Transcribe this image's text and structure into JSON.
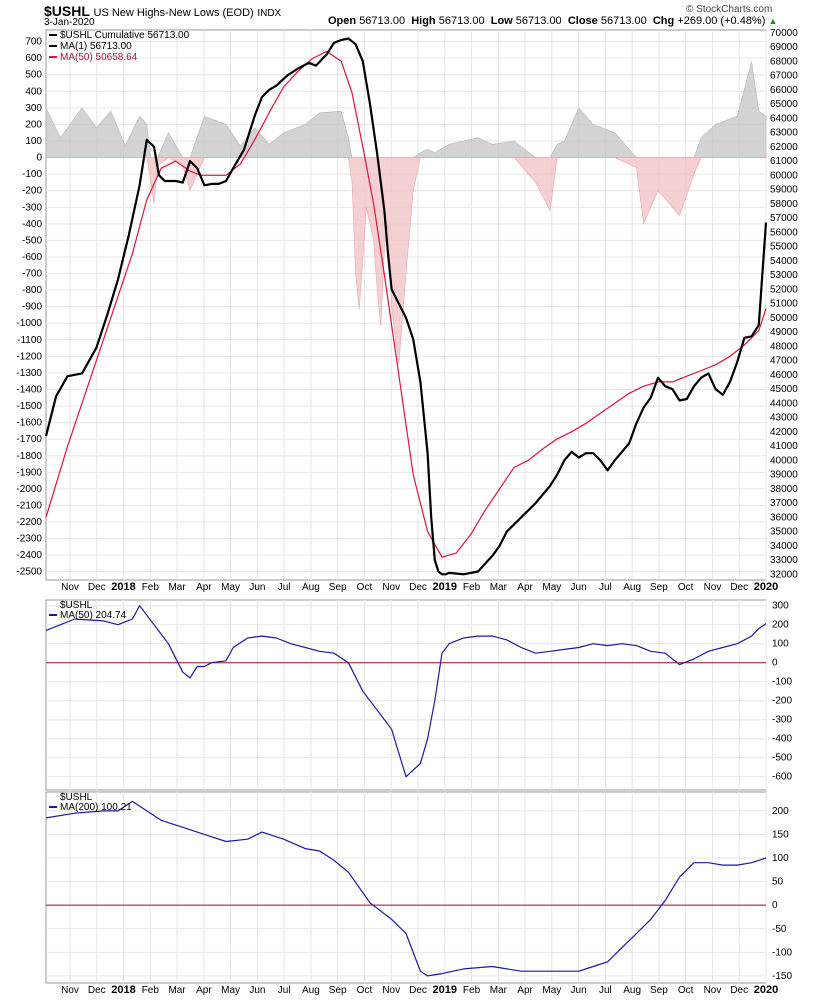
{
  "header": {
    "symbol": "$USHL",
    "name": "US New Highs-New Lows (EOD)",
    "exchange": "INDX",
    "date": "3-Jan-2020",
    "open_label": "Open",
    "open": "56713.00",
    "high_label": "High",
    "high": "56713.00",
    "low_label": "Low",
    "low": "56713.00",
    "close_label": "Close",
    "close": "56713.00",
    "chg_label": "Chg",
    "chg": "+269.00 (+0.48%)",
    "credit": "© StockCharts.com"
  },
  "colors": {
    "cumulative": "#000000",
    "ma50": "#e0143c",
    "histogram_pos": "#c8c8c8",
    "histogram_neg": "#f2c4c8",
    "lower": "#1a1aa0",
    "zero_line": "#9b1030",
    "grid": "#e6e6e6"
  },
  "chart_data": [
    {
      "type": "line",
      "legend": [
        {
          "label": "$USHL Cumulative 56713.00"
        },
        {
          "label": "MA(1) 56713.00"
        },
        {
          "label": "MA(50) 50658.64"
        }
      ],
      "x_labels": [
        "Nov",
        "Dec",
        "2018",
        "Feb",
        "Mar",
        "Apr",
        "May",
        "Jun",
        "Jul",
        "Aug",
        "Sep",
        "Oct",
        "Nov",
        "Dec",
        "2019",
        "Feb",
        "Mar",
        "Apr",
        "May",
        "Jun",
        "Jul",
        "Aug",
        "Sep",
        "Oct",
        "Nov",
        "Dec",
        "2020"
      ],
      "left_ticks": [
        700,
        600,
        500,
        400,
        300,
        200,
        100,
        0,
        -100,
        -200,
        -300,
        -400,
        -500,
        -600,
        -700,
        -800,
        -900,
        -1000,
        -1100,
        -1200,
        -1300,
        -1400,
        -1500,
        -1600,
        -1700,
        -1800,
        -1900,
        -2000,
        -2100,
        -2200,
        -2300,
        -2400,
        -2500
      ],
      "right_ticks": [
        70000,
        69000,
        68000,
        67000,
        66000,
        65000,
        64000,
        63000,
        62000,
        61000,
        60000,
        59000,
        58000,
        57000,
        56000,
        55000,
        54000,
        53000,
        52000,
        51000,
        50000,
        49000,
        48000,
        47000,
        46000,
        45000,
        44000,
        43000,
        42000,
        41000,
        40000,
        39000,
        38000,
        37000,
        36000,
        35000,
        34000,
        33000,
        32000
      ],
      "left_range": [
        -2550,
        770
      ],
      "right_range": [
        31600,
        70200
      ],
      "cumulative": {
        "x": [
          0,
          0.014,
          0.03,
          0.05,
          0.07,
          0.085,
          0.1,
          0.115,
          0.13,
          0.14,
          0.15,
          0.157,
          0.165,
          0.18,
          0.19,
          0.2,
          0.21,
          0.22,
          0.23,
          0.24,
          0.25,
          0.26,
          0.275,
          0.29,
          0.3,
          0.31,
          0.32,
          0.335,
          0.35,
          0.365,
          0.375,
          0.39,
          0.4,
          0.41,
          0.42,
          0.43,
          0.44,
          0.45,
          0.46,
          0.47,
          0.475,
          0.48,
          0.49,
          0.5,
          0.51,
          0.52,
          0.53,
          0.535,
          0.54,
          0.545,
          0.55,
          0.555,
          0.56,
          0.58,
          0.6,
          0.62,
          0.63,
          0.64,
          0.66,
          0.68,
          0.7,
          0.71,
          0.72,
          0.73,
          0.74,
          0.75,
          0.76,
          0.77,
          0.78,
          0.79,
          0.8,
          0.81,
          0.82,
          0.83,
          0.84,
          0.85,
          0.86,
          0.87,
          0.88,
          0.89,
          0.9,
          0.91,
          0.92,
          0.93,
          0.94,
          0.95,
          0.96,
          0.97,
          0.98,
          0.99,
          1.0
        ],
        "y": [
          41700,
          44500,
          45900,
          46100,
          47900,
          50200,
          52700,
          55800,
          59300,
          62500,
          62000,
          60000,
          59600,
          59600,
          59500,
          61000,
          60500,
          59300,
          59400,
          59400,
          59600,
          60500,
          61800,
          64200,
          65500,
          66000,
          66300,
          67000,
          67500,
          67900,
          67700,
          68500,
          69300,
          69500,
          69600,
          69200,
          68000,
          65000,
          61500,
          57500,
          54500,
          52000,
          51000,
          50000,
          48500,
          45500,
          40500,
          36000,
          33000,
          32200,
          32000,
          32000,
          32100,
          32000,
          32200,
          33300,
          34000,
          35000,
          36000,
          37000,
          38200,
          39000,
          40000,
          40600,
          40200,
          40500,
          40500,
          40000,
          39300,
          40000,
          40600,
          41200,
          42600,
          43700,
          44400,
          45800,
          45200,
          45000,
          44200,
          44300,
          45200,
          45800,
          46100,
          45000,
          44600,
          45500,
          46900,
          48600,
          48700,
          49500,
          56700
        ]
      },
      "ma50": {
        "x": [
          0,
          0.03,
          0.06,
          0.09,
          0.12,
          0.14,
          0.16,
          0.18,
          0.2,
          0.215,
          0.23,
          0.25,
          0.27,
          0.29,
          0.31,
          0.33,
          0.35,
          0.37,
          0.39,
          0.41,
          0.425,
          0.44,
          0.455,
          0.47,
          0.49,
          0.51,
          0.53,
          0.55,
          0.57,
          0.59,
          0.61,
          0.63,
          0.65,
          0.67,
          0.69,
          0.71,
          0.73,
          0.75,
          0.77,
          0.79,
          0.81,
          0.83,
          0.85,
          0.87,
          0.89,
          0.91,
          0.93,
          0.95,
          0.97,
          0.99,
          1.0
        ],
        "y": [
          36000,
          41000,
          45500,
          50000,
          54500,
          58300,
          60500,
          61000,
          60300,
          60000,
          60000,
          60000,
          60800,
          62500,
          64400,
          66200,
          67300,
          68200,
          68700,
          68000,
          65800,
          62000,
          58000,
          53000,
          46000,
          39000,
          35000,
          33200,
          33500,
          34800,
          36500,
          38000,
          39500,
          40000,
          40800,
          41500,
          42000,
          42600,
          43300,
          44000,
          44700,
          45200,
          45500,
          45500,
          45900,
          46300,
          46700,
          47300,
          48100,
          49100,
          50650
        ]
      },
      "histogram": {
        "x": [
          0,
          0.02,
          0.05,
          0.07,
          0.09,
          0.11,
          0.13,
          0.14,
          0.145,
          0.15,
          0.155,
          0.17,
          0.19,
          0.2,
          0.22,
          0.25,
          0.27,
          0.29,
          0.31,
          0.33,
          0.36,
          0.38,
          0.41,
          0.42,
          0.425,
          0.43,
          0.435,
          0.445,
          0.455,
          0.46,
          0.465,
          0.47,
          0.475,
          0.48,
          0.49,
          0.5,
          0.51,
          0.52,
          0.53,
          0.54,
          0.56,
          0.6,
          0.62,
          0.65,
          0.68,
          0.7,
          0.71,
          0.72,
          0.74,
          0.76,
          0.79,
          0.82,
          0.83,
          0.85,
          0.88,
          0.9,
          0.91,
          0.93,
          0.96,
          0.98,
          0.99,
          1.0
        ],
        "y": [
          300,
          120,
          300,
          180,
          280,
          70,
          250,
          200,
          -130,
          -280,
          -50,
          150,
          -50,
          -200,
          250,
          200,
          70,
          180,
          80,
          150,
          200,
          270,
          280,
          120,
          -150,
          -700,
          -920,
          -300,
          -500,
          -800,
          -1020,
          -550,
          -400,
          -900,
          -1250,
          -700,
          -200,
          30,
          50,
          30,
          80,
          120,
          80,
          100,
          -150,
          -320,
          80,
          100,
          300,
          200,
          150,
          -60,
          -400,
          -200,
          -350,
          -100,
          120,
          200,
          250,
          580,
          280,
          250
        ]
      },
      "histogram_range": [
        -2550,
        770
      ]
    },
    {
      "type": "line",
      "legend": [
        {
          "label": "$USHL"
        },
        {
          "label": "MA(50) 204.74"
        }
      ],
      "ticks": [
        300,
        200,
        100,
        0,
        -100,
        -200,
        -300,
        -400,
        -500,
        -600
      ],
      "range": [
        -670,
        330
      ],
      "x": [
        0,
        0.04,
        0.08,
        0.1,
        0.12,
        0.13,
        0.15,
        0.17,
        0.19,
        0.2,
        0.21,
        0.22,
        0.23,
        0.25,
        0.26,
        0.28,
        0.3,
        0.32,
        0.34,
        0.36,
        0.38,
        0.4,
        0.42,
        0.44,
        0.46,
        0.48,
        0.5,
        0.52,
        0.53,
        0.54,
        0.55,
        0.56,
        0.58,
        0.6,
        0.62,
        0.64,
        0.66,
        0.68,
        0.7,
        0.72,
        0.74,
        0.76,
        0.78,
        0.8,
        0.82,
        0.84,
        0.86,
        0.88,
        0.9,
        0.92,
        0.94,
        0.96,
        0.98,
        0.99,
        1.0
      ],
      "y": [
        170,
        230,
        220,
        200,
        230,
        300,
        200,
        100,
        -50,
        -80,
        -20,
        -20,
        0,
        10,
        80,
        130,
        140,
        130,
        100,
        80,
        60,
        50,
        0,
        -150,
        -250,
        -350,
        -600,
        -530,
        -400,
        -200,
        50,
        100,
        130,
        140,
        140,
        120,
        80,
        50,
        60,
        70,
        80,
        100,
        90,
        100,
        90,
        60,
        50,
        -10,
        20,
        60,
        80,
        100,
        140,
        180,
        205
      ]
    },
    {
      "type": "line",
      "legend": [
        {
          "label": "$USHL"
        },
        {
          "label": "MA(200) 100.21"
        }
      ],
      "ticks": [
        200,
        150,
        100,
        50,
        0,
        -50,
        -100,
        -150
      ],
      "range": [
        -165,
        240
      ],
      "x": [
        0,
        0.04,
        0.08,
        0.1,
        0.12,
        0.14,
        0.16,
        0.2,
        0.22,
        0.25,
        0.28,
        0.3,
        0.33,
        0.36,
        0.38,
        0.4,
        0.42,
        0.45,
        0.48,
        0.5,
        0.52,
        0.53,
        0.55,
        0.58,
        0.62,
        0.66,
        0.7,
        0.74,
        0.76,
        0.78,
        0.8,
        0.82,
        0.84,
        0.86,
        0.88,
        0.9,
        0.91,
        0.92,
        0.94,
        0.96,
        0.98,
        1.0
      ],
      "y": [
        185,
        195,
        200,
        200,
        220,
        200,
        180,
        160,
        150,
        135,
        140,
        155,
        140,
        120,
        115,
        95,
        70,
        5,
        -30,
        -60,
        -140,
        -150,
        -145,
        -135,
        -130,
        -140,
        -140,
        -140,
        -130,
        -120,
        -90,
        -60,
        -30,
        10,
        60,
        90,
        90,
        90,
        85,
        85,
        90,
        100
      ]
    }
  ]
}
